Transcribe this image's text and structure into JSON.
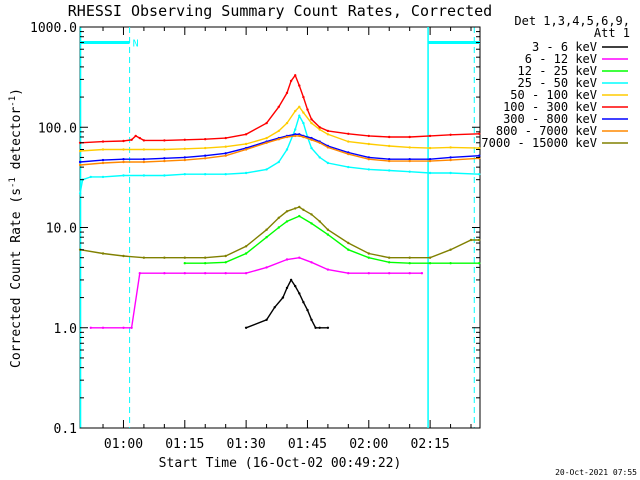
{
  "chart_data": {
    "type": "line",
    "title": "RHESSI Observing Summary Count Rates, Corrected",
    "xlabel": "Start Time (16-Oct-02 00:49:22)",
    "ylabel_main": "Corrected Count Rate (s",
    "ylabel_exp1": "-1",
    "ylabel_mid": " detector",
    "ylabel_exp2": "-1",
    "ylabel_end": ")",
    "yscale": "log",
    "ylim": [
      0.1,
      1000
    ],
    "x_range_minutes": [
      49.37,
      147.2
    ],
    "xticks": [
      {
        "min": 60,
        "label": "01:00"
      },
      {
        "min": 75,
        "label": "01:15"
      },
      {
        "min": 90,
        "label": "01:30"
      },
      {
        "min": 105,
        "label": "01:45"
      },
      {
        "min": 120,
        "label": "02:00"
      },
      {
        "min": 135,
        "label": "02:15"
      }
    ],
    "yticks": [
      {
        "value": 1000,
        "label": "1000.0"
      },
      {
        "value": 100,
        "label": "100.0"
      },
      {
        "value": 10,
        "label": "10.0"
      },
      {
        "value": 1,
        "label": "1.0"
      },
      {
        "value": 0.1,
        "label": "0.1"
      }
    ],
    "legend": {
      "placement": "right",
      "header_line1": "Det 1,3,4,5,6,9,",
      "header_line2": "Att 1"
    },
    "series": [
      {
        "name": "3 - 6 keV",
        "color": "#000000",
        "x": [
          90,
          95,
          97,
          99,
          100,
          101,
          102,
          103,
          104,
          105,
          106,
          107,
          108,
          110
        ],
        "y": [
          1.0,
          1.2,
          1.6,
          2.0,
          2.5,
          3.0,
          2.6,
          2.2,
          1.8,
          1.5,
          1.2,
          1.0,
          1.0,
          1.0
        ]
      },
      {
        "name": "6 - 12 keV",
        "color": "#ff00ff",
        "x": [
          52,
          55,
          60,
          62,
          64,
          70,
          75,
          80,
          85,
          90,
          95,
          100,
          103,
          106,
          110,
          115,
          120,
          125,
          130,
          133
        ],
        "y": [
          1.0,
          1.0,
          1.0,
          1.0,
          3.5,
          3.5,
          3.5,
          3.5,
          3.5,
          3.5,
          4.0,
          4.8,
          5.0,
          4.5,
          3.8,
          3.5,
          3.5,
          3.5,
          3.5,
          3.5
        ]
      },
      {
        "name": "12 - 25 keV",
        "color": "#00ff00",
        "x": [
          75,
          80,
          85,
          90,
          95,
          98,
          100,
          103,
          106,
          110,
          115,
          120,
          125,
          130,
          135,
          140,
          147
        ],
        "y": [
          4.4,
          4.4,
          4.5,
          5.5,
          8.0,
          10.0,
          11.5,
          13.0,
          11.0,
          8.5,
          6.0,
          5.0,
          4.5,
          4.4,
          4.4,
          4.4,
          4.4
        ]
      },
      {
        "name": "25 - 50 keV",
        "color": "#00ffff",
        "x": [
          49.4,
          50,
          52,
          55,
          60,
          65,
          70,
          75,
          80,
          85,
          90,
          95,
          98,
          100,
          102,
          103,
          104,
          105,
          106,
          108,
          110,
          115,
          120,
          125,
          130,
          135,
          140,
          147
        ],
        "y": [
          22,
          30,
          32,
          32,
          33,
          33,
          33,
          34,
          34,
          34,
          35,
          38,
          45,
          60,
          95,
          130,
          110,
          80,
          62,
          50,
          44,
          40,
          38,
          37,
          36,
          35,
          35,
          34
        ]
      },
      {
        "name": "50 - 100 keV",
        "color": "#ffcc00",
        "x": [
          49.4,
          55,
          60,
          65,
          70,
          75,
          80,
          85,
          90,
          95,
          98,
          100,
          102,
          103,
          104,
          106,
          108,
          110,
          115,
          120,
          125,
          130,
          135,
          140,
          147
        ],
        "y": [
          58,
          60,
          60,
          60,
          60,
          61,
          62,
          64,
          68,
          78,
          92,
          110,
          145,
          160,
          140,
          110,
          95,
          85,
          72,
          68,
          65,
          63,
          62,
          63,
          62
        ]
      },
      {
        "name": "100 - 300 keV",
        "color": "#ff0000",
        "x": [
          49.4,
          55,
          60,
          62,
          63,
          64,
          65,
          70,
          75,
          80,
          85,
          90,
          95,
          98,
          100,
          101,
          102,
          103,
          104,
          105,
          106,
          108,
          110,
          115,
          120,
          125,
          130,
          135,
          140,
          147
        ],
        "y": [
          70,
          72,
          73,
          75,
          82,
          78,
          74,
          74,
          75,
          76,
          78,
          85,
          110,
          160,
          220,
          290,
          330,
          260,
          200,
          150,
          120,
          100,
          92,
          86,
          82,
          80,
          80,
          82,
          84,
          86
        ]
      },
      {
        "name": "300 - 800 keV",
        "color": "#0000ff",
        "x": [
          49.4,
          55,
          60,
          65,
          70,
          75,
          80,
          85,
          90,
          95,
          98,
          100,
          102,
          103,
          104,
          106,
          108,
          110,
          115,
          120,
          125,
          130,
          135,
          140,
          147
        ],
        "y": [
          45,
          47,
          48,
          48,
          49,
          50,
          52,
          55,
          62,
          72,
          78,
          82,
          85,
          85,
          82,
          78,
          72,
          65,
          56,
          50,
          48,
          48,
          48,
          50,
          52
        ]
      },
      {
        "name": "800 - 7000 keV",
        "color": "#ff8800",
        "x": [
          49.4,
          55,
          60,
          65,
          70,
          75,
          80,
          85,
          90,
          95,
          98,
          100,
          102,
          103,
          104,
          106,
          108,
          110,
          115,
          120,
          125,
          130,
          135,
          140,
          147
        ],
        "y": [
          42,
          44,
          45,
          45,
          46,
          47,
          49,
          52,
          60,
          70,
          76,
          80,
          82,
          82,
          80,
          75,
          70,
          63,
          54,
          48,
          46,
          46,
          46,
          47,
          49
        ]
      },
      {
        "name": "7000 - 15000 keV",
        "color": "#808000",
        "x": [
          49.4,
          55,
          60,
          65,
          70,
          75,
          80,
          85,
          90,
          95,
          98,
          100,
          102,
          103,
          104,
          106,
          108,
          110,
          115,
          120,
          125,
          130,
          135,
          140,
          145,
          147
        ],
        "y": [
          6.0,
          5.5,
          5.2,
          5.0,
          5.0,
          5.0,
          5.0,
          5.2,
          6.5,
          9.5,
          12.5,
          14.5,
          15.5,
          16.0,
          15.0,
          13.5,
          11.5,
          9.5,
          7.0,
          5.5,
          5.0,
          5.0,
          5.0,
          6.0,
          7.5,
          7.5
        ]
      }
    ],
    "overlays": {
      "attenuator_bar_ranges_minutes": [
        [
          49.4,
          61.5
        ],
        [
          134.5,
          147.2
        ]
      ],
      "attenuator_level": 700,
      "night_lines_minutes": [
        61.5,
        145.8
      ],
      "saa_lines_minutes": [
        49.5,
        134.5
      ],
      "n_label": "N"
    }
  },
  "footer_timestamp": "20-Oct-2021 07:55"
}
